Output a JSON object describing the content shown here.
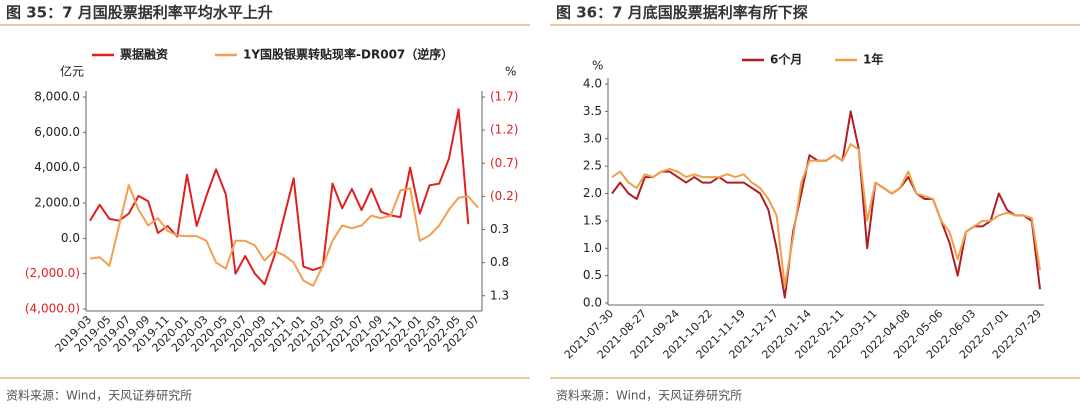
{
  "chart_data": [
    {
      "type": "line",
      "title": "图 35：7 月国股票据利率平均水平上升",
      "source": "资料来源：Wind，天风证券研究所",
      "y_label": "亿元",
      "y2_label": "%",
      "categories": [
        "2019-03",
        null,
        "2019-05",
        null,
        "2019-07",
        null,
        "2019-09",
        null,
        "2019-11",
        null,
        "2020-01",
        null,
        "2020-03",
        null,
        "2020-05",
        null,
        "2020-07",
        null,
        "2020-09",
        null,
        "2020-11",
        null,
        "2021-01",
        null,
        "2021-03",
        null,
        "2021-05",
        null,
        "2021-07",
        null,
        "2021-09",
        null,
        "2021-11",
        null,
        "2022-01",
        null,
        "2022-03",
        null,
        "2022-05",
        null,
        "2022-07"
      ],
      "series": [
        {
          "name": "票据融资",
          "color": "#e02020",
          "values": [
            1000,
            1900,
            1100,
            1000,
            1400,
            2400,
            2100,
            300,
            700,
            100,
            3600,
            700,
            2400,
            3900,
            2500,
            -2000,
            -1000,
            -2000,
            -2600,
            -1000,
            1200,
            3400,
            -1600,
            -1800,
            -1600,
            3100,
            1700,
            2800,
            1600,
            2800,
            1500,
            1300,
            1200,
            4000,
            1400,
            3000,
            3100,
            4500,
            7300,
            800,
            null
          ]
        },
        {
          "name": "1Y国股银票转贴现率-DR007（逆序）",
          "color": "#f0a050",
          "axis": "y2",
          "values": [
            0.74,
            0.72,
            0.85,
            0.24,
            -0.37,
            0.0,
            0.24,
            0.13,
            0.32,
            0.39,
            0.4,
            0.4,
            0.47,
            0.8,
            0.89,
            0.47,
            0.47,
            0.54,
            0.77,
            0.62,
            0.69,
            0.8,
            1.07,
            1.15,
            0.85,
            0.47,
            0.24,
            0.28,
            0.24,
            0.09,
            0.13,
            0.09,
            -0.29,
            -0.32,
            0.47,
            0.39,
            0.24,
            0.0,
            -0.18,
            -0.2,
            -0.03
          ]
        }
      ],
      "ylim": [
        -4000,
        8000
      ],
      "yticks": [
        {
          "value": 8000,
          "label": "8,000.0"
        },
        {
          "value": 6000,
          "label": "6,000.0"
        },
        {
          "value": 4000,
          "label": "4,000.0"
        },
        {
          "value": 2000,
          "label": "2,000.0"
        },
        {
          "value": 0,
          "label": "0.0"
        },
        {
          "value": -2000,
          "label": "(2,000.0)"
        },
        {
          "value": -4000,
          "label": "(4,000.0)"
        }
      ],
      "y2lim": [
        -1.7,
        1.5
      ],
      "y2_inverted": true,
      "y2ticks": [
        {
          "value": -1.7,
          "label": "(1.7)"
        },
        {
          "value": -1.2,
          "label": "(1.2)"
        },
        {
          "value": -0.7,
          "label": "(0.7)"
        },
        {
          "value": -0.2,
          "label": "(0.2)"
        },
        0.3,
        0.8,
        1.3
      ],
      "negative_label_color": "#e02020",
      "grid": false
    },
    {
      "type": "line",
      "title": "图 36：7 月底国股票据利率有所下探",
      "source": "资料来源：Wind，天风证券研究所",
      "y_label": "%",
      "categories": [
        "2021-07-30",
        null,
        null,
        null,
        "2021-08-27",
        null,
        null,
        null,
        "2021-09-24",
        null,
        null,
        null,
        "2021-10-22",
        null,
        null,
        null,
        "2021-11-19",
        null,
        null,
        null,
        "2021-12-17",
        null,
        null,
        null,
        "2022-01-14",
        null,
        null,
        null,
        "2022-02-11",
        null,
        null,
        null,
        "2022-03-11",
        null,
        null,
        null,
        "2022-04-08",
        null,
        null,
        null,
        "2022-05-06",
        null,
        null,
        null,
        "2022-06-03",
        null,
        null,
        null,
        "2022-07-01",
        null,
        null,
        null,
        "2022-07-29"
      ],
      "series": [
        {
          "name": "6个月",
          "color": "#b01e23",
          "values": [
            2.0,
            2.2,
            2.0,
            1.9,
            2.3,
            2.3,
            2.4,
            2.4,
            2.3,
            2.2,
            2.3,
            2.2,
            2.2,
            2.3,
            2.2,
            2.2,
            2.2,
            2.1,
            2.0,
            1.7,
            1.0,
            0.1,
            1.3,
            2.0,
            2.7,
            2.6,
            2.6,
            2.7,
            2.6,
            3.5,
            2.8,
            1.0,
            2.2,
            2.1,
            2.0,
            2.1,
            2.3,
            2.0,
            1.9,
            1.9,
            1.5,
            1.1,
            0.5,
            1.3,
            1.4,
            1.4,
            1.5,
            2.0,
            1.7,
            1.6,
            1.6,
            1.5,
            0.25
          ]
        },
        {
          "name": "1年",
          "color": "#f0a04b",
          "values": [
            2.3,
            2.4,
            2.2,
            2.1,
            2.35,
            2.3,
            2.4,
            2.45,
            2.4,
            2.3,
            2.35,
            2.3,
            2.3,
            2.3,
            2.35,
            2.3,
            2.35,
            2.2,
            2.1,
            1.9,
            1.6,
            0.3,
            1.2,
            2.2,
            2.6,
            2.6,
            2.6,
            2.7,
            2.6,
            2.9,
            2.8,
            1.5,
            2.2,
            2.1,
            2.0,
            2.1,
            2.4,
            2.0,
            1.95,
            1.9,
            1.5,
            1.3,
            0.8,
            1.3,
            1.4,
            1.5,
            1.5,
            1.6,
            1.65,
            1.6,
            1.6,
            1.55,
            0.6
          ]
        }
      ],
      "ylim": [
        0,
        4
      ],
      "yticks": [
        {
          "value": 0,
          "label": "0.0"
        },
        0.5,
        {
          "value": 1,
          "label": "1.0"
        },
        1.5,
        {
          "value": 2,
          "label": "2.0"
        },
        2.5,
        {
          "value": 3,
          "label": "3.0"
        },
        3.5,
        {
          "value": 4,
          "label": "4.0"
        }
      ],
      "grid": false
    }
  ]
}
